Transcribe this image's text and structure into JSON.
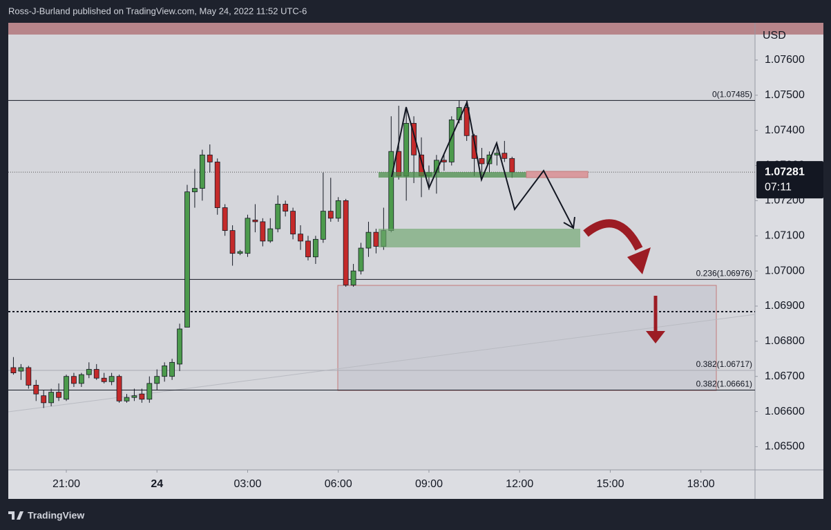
{
  "header": "Ross-J-Burland published on TradingView.com, May 24, 2022 11:52 UTC-6",
  "footer": "TradingView",
  "chart_data": {
    "type": "candlestick",
    "currency": "USD",
    "up_color": "#4c9a4c",
    "down_color": "#c42a2a",
    "xlim": [
      -4.92,
      19.79
    ],
    "ylim": [
      1.06434,
      1.07706
    ],
    "xticks": [
      {
        "value": -3,
        "label": "21:00"
      },
      {
        "value": 0,
        "label": "24"
      },
      {
        "value": 3,
        "label": "03:00"
      },
      {
        "value": 6,
        "label": "06:00"
      },
      {
        "value": 9,
        "label": "09:00"
      },
      {
        "value": 12,
        "label": "12:00"
      },
      {
        "value": 15,
        "label": "15:00"
      },
      {
        "value": 18,
        "label": "18:00"
      }
    ],
    "yticks": [
      {
        "value": 1.065,
        "label": "1.06500"
      },
      {
        "value": 1.066,
        "label": "1.06600"
      },
      {
        "value": 1.067,
        "label": "1.06700"
      },
      {
        "value": 1.068,
        "label": "1.06800"
      },
      {
        "value": 1.069,
        "label": "1.06900"
      },
      {
        "value": 1.07,
        "label": "1.07000"
      },
      {
        "value": 1.071,
        "label": "1.07100"
      },
      {
        "value": 1.072,
        "label": "1.07200"
      },
      {
        "value": 1.073,
        "label": "1.07300"
      },
      {
        "value": 1.074,
        "label": "1.07400"
      },
      {
        "value": 1.075,
        "label": "1.07500"
      },
      {
        "value": 1.076,
        "label": "1.07600"
      }
    ],
    "last_price": 1.07281,
    "countdown": "07:11",
    "fib_levels": [
      {
        "label": "0(1.07485)",
        "value": 1.07485,
        "color": "#131722"
      },
      {
        "label": "0.236(1.06976)",
        "value": 1.06976,
        "color": "#131722"
      },
      {
        "label": "0.382(1.06717)",
        "value": 1.06717,
        "color": "#a9abb3"
      },
      {
        "label": "0.382(1.06661)",
        "value": 1.06661,
        "color": "#131722"
      }
    ],
    "candles": {
      "x": [
        -4.75,
        -4.5,
        -4.25,
        -4,
        -3.75,
        -3.5,
        -3.25,
        -3,
        -2.75,
        -2.5,
        -2.25,
        -2,
        -1.75,
        -1.5,
        -1.25,
        -1,
        -0.75,
        -0.5,
        -0.25,
        0,
        0.25,
        0.5,
        0.75,
        1,
        1.25,
        1.5,
        1.75,
        2,
        2.25,
        2.5,
        2.75,
        3,
        3.25,
        3.5,
        3.75,
        4,
        4.25,
        4.5,
        4.75,
        5,
        5.25,
        5.5,
        5.75,
        6,
        6.25,
        6.5,
        6.75,
        7,
        7.25,
        7.5,
        7.75,
        8,
        8.25,
        8.5,
        8.75,
        9,
        9.25,
        9.5,
        9.75,
        10,
        10.25,
        10.5,
        10.75,
        11,
        11.25,
        11.5,
        11.75
      ],
      "open": [
        1.06725,
        1.06715,
        1.06725,
        1.06675,
        1.06645,
        1.06625,
        1.06655,
        1.06635,
        1.067,
        1.0668,
        1.06705,
        1.0672,
        1.06695,
        1.06685,
        1.067,
        1.0663,
        1.0664,
        1.0665,
        1.06635,
        1.0668,
        1.067,
        1.067,
        1.06735,
        1.0684,
        1.07225,
        1.07235,
        1.0733,
        1.0731,
        1.0718,
        1.07115,
        1.0705,
        1.0705,
        1.07145,
        1.0714,
        1.07085,
        1.0712,
        1.0719,
        1.0717,
        1.07105,
        1.07085,
        1.0704,
        1.0709,
        1.0717,
        1.0715,
        1.072,
        1.0696,
        1.07,
        1.07065,
        1.0711,
        1.0707,
        1.07115,
        1.0734,
        1.0727,
        1.0742,
        1.0733,
        1.0727,
        1.0728,
        1.07315,
        1.0731,
        1.0743,
        1.07465,
        1.07385,
        1.0732,
        1.07305,
        1.0733,
        1.07335,
        1.0732
      ],
      "high": [
        1.06755,
        1.06735,
        1.0673,
        1.0669,
        1.0666,
        1.06665,
        1.0668,
        1.06705,
        1.0671,
        1.0671,
        1.0674,
        1.06735,
        1.0671,
        1.0671,
        1.06705,
        1.0665,
        1.06665,
        1.06665,
        1.067,
        1.0672,
        1.0674,
        1.0675,
        1.0685,
        1.07245,
        1.0729,
        1.07345,
        1.0736,
        1.0732,
        1.0719,
        1.0713,
        1.0706,
        1.0716,
        1.0719,
        1.0715,
        1.0715,
        1.07215,
        1.072,
        1.0718,
        1.0713,
        1.071,
        1.071,
        1.0728,
        1.07265,
        1.0721,
        1.07205,
        1.0702,
        1.0708,
        1.0714,
        1.0712,
        1.0718,
        1.0744,
        1.0747,
        1.0746,
        1.0744,
        1.0738,
        1.073,
        1.0733,
        1.07335,
        1.0744,
        1.07485,
        1.07485,
        1.0739,
        1.0735,
        1.0734,
        1.07365,
        1.0737,
        1.07325
      ],
      "low": [
        1.06705,
        1.0669,
        1.06665,
        1.0663,
        1.0661,
        1.06615,
        1.0663,
        1.0663,
        1.0667,
        1.0667,
        1.06695,
        1.0669,
        1.0668,
        1.06675,
        1.06625,
        1.06625,
        1.0663,
        1.06625,
        1.06625,
        1.0666,
        1.06685,
        1.0669,
        1.06715,
        1.0684,
        1.0718,
        1.072,
        1.0728,
        1.0716,
        1.071,
        1.07015,
        1.07045,
        1.0704,
        1.0711,
        1.0707,
        1.0708,
        1.0711,
        1.07155,
        1.0709,
        1.0706,
        1.0703,
        1.0702,
        1.0708,
        1.0714,
        1.0714,
        1.06955,
        1.06955,
        1.0699,
        1.0704,
        1.0705,
        1.0706,
        1.0711,
        1.0726,
        1.072,
        1.0725,
        1.0721,
        1.0723,
        1.0722,
        1.07285,
        1.073,
        1.0742,
        1.0737,
        1.0727,
        1.0727,
        1.0728,
        1.073,
        1.0731,
        1.07265
      ],
      "close": [
        1.0671,
        1.06725,
        1.06675,
        1.0665,
        1.06625,
        1.06655,
        1.0664,
        1.067,
        1.0668,
        1.06705,
        1.0672,
        1.06695,
        1.06685,
        1.067,
        1.0663,
        1.0664,
        1.06645,
        1.06635,
        1.0668,
        1.067,
        1.0673,
        1.0674,
        1.06835,
        1.07225,
        1.07235,
        1.0733,
        1.0731,
        1.0718,
        1.07115,
        1.0705,
        1.07055,
        1.0715,
        1.0714,
        1.07085,
        1.0712,
        1.0719,
        1.0717,
        1.07105,
        1.07085,
        1.0704,
        1.0709,
        1.0717,
        1.0715,
        1.072,
        1.0696,
        1.07,
        1.07065,
        1.0711,
        1.0707,
        1.07115,
        1.0734,
        1.0727,
        1.0742,
        1.0733,
        1.0727,
        1.0728,
        1.07315,
        1.0731,
        1.0743,
        1.07465,
        1.07385,
        1.0732,
        1.07305,
        1.0733,
        1.07335,
        1.0732,
        1.07281
      ]
    }
  }
}
